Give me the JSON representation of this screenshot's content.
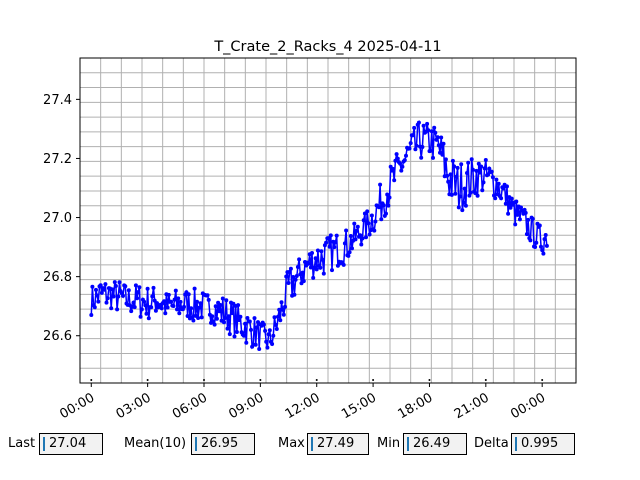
{
  "chart_data": {
    "type": "line",
    "title": "T_Crate_2_Racks_4 2025-04-11",
    "xlabel": "",
    "ylabel": "",
    "x_ticks": [
      "00:00",
      "03:00",
      "06:00",
      "09:00",
      "12:00",
      "15:00",
      "18:00",
      "21:00",
      "00:00"
    ],
    "y_ticks": [
      "26.6",
      "26.8",
      "27.0",
      "27.2",
      "27.4"
    ],
    "ylim": [
      26.44,
      27.54
    ],
    "xlim_hours": [
      -0.6,
      25.8
    ],
    "grid": true,
    "series": [
      {
        "color": "#0000ff",
        "marker": "circle",
        "x_hours": [
          0.0,
          0.5,
          1.0,
          1.5,
          2.0,
          2.5,
          3.0,
          3.5,
          4.0,
          4.5,
          5.0,
          5.5,
          6.0,
          6.5,
          7.0,
          7.5,
          8.0,
          8.5,
          9.0,
          9.5,
          10.0,
          10.5,
          11.0,
          11.5,
          12.0,
          12.5,
          13.0,
          13.5,
          14.0,
          14.5,
          15.0,
          15.5,
          16.0,
          16.5,
          17.0,
          17.5,
          18.0,
          18.5,
          19.0,
          19.5,
          20.0,
          20.5,
          21.0,
          21.5,
          22.0,
          22.5,
          23.0,
          23.5,
          24.0,
          24.25
        ],
        "y": [
          26.72,
          26.74,
          26.74,
          26.73,
          26.72,
          26.72,
          26.71,
          26.72,
          26.7,
          26.7,
          26.71,
          26.7,
          26.7,
          26.69,
          26.68,
          26.66,
          26.64,
          26.62,
          26.6,
          26.58,
          26.66,
          26.76,
          26.8,
          26.84,
          26.86,
          26.87,
          26.89,
          26.9,
          26.93,
          26.96,
          27.0,
          27.06,
          27.12,
          27.18,
          27.22,
          27.26,
          27.26,
          27.24,
          27.14,
          27.1,
          27.12,
          27.14,
          27.14,
          27.12,
          27.08,
          27.02,
          26.99,
          26.95,
          26.92,
          26.94
        ],
        "spread": [
          0.05,
          0.06,
          0.05,
          0.06,
          0.05,
          0.06,
          0.06,
          0.05,
          0.05,
          0.06,
          0.05,
          0.06,
          0.05,
          0.05,
          0.06,
          0.06,
          0.06,
          0.06,
          0.05,
          0.05,
          0.06,
          0.07,
          0.06,
          0.06,
          0.06,
          0.07,
          0.06,
          0.06,
          0.05,
          0.05,
          0.06,
          0.07,
          0.07,
          0.07,
          0.07,
          0.07,
          0.06,
          0.07,
          0.09,
          0.09,
          0.08,
          0.07,
          0.06,
          0.06,
          0.05,
          0.05,
          0.05,
          0.05,
          0.05,
          0.05
        ]
      }
    ]
  },
  "stats": {
    "last_label": "Last",
    "last_value": "27.04",
    "mean_label": "Mean(10)",
    "mean_value": "26.95",
    "max_label": "Max",
    "max_value": "27.49",
    "min_label": "Min",
    "min_value": "26.49",
    "delta_label": "Delta",
    "delta_value": "0.995"
  }
}
